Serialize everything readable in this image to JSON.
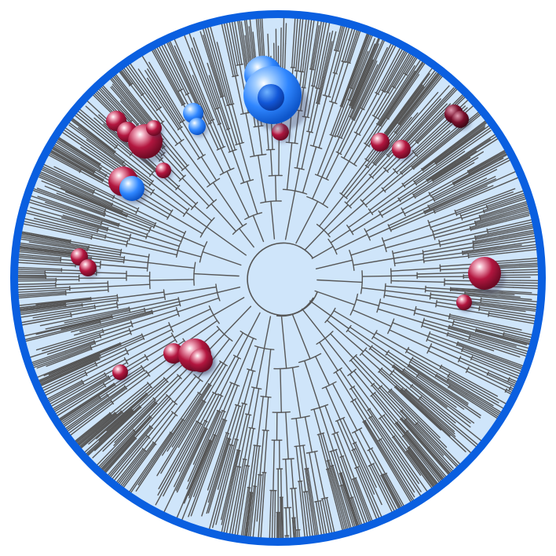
{
  "figure": {
    "kind": "circular phylogenetic tree",
    "colors": {
      "frame": "#0a5fe0",
      "background": "#cfe5fa",
      "branch": "#565656",
      "red_marker": "#b3163f",
      "blue_marker": "#1a6cf0"
    },
    "markers": {
      "red_count": 20,
      "blue_count": 5
    }
  }
}
